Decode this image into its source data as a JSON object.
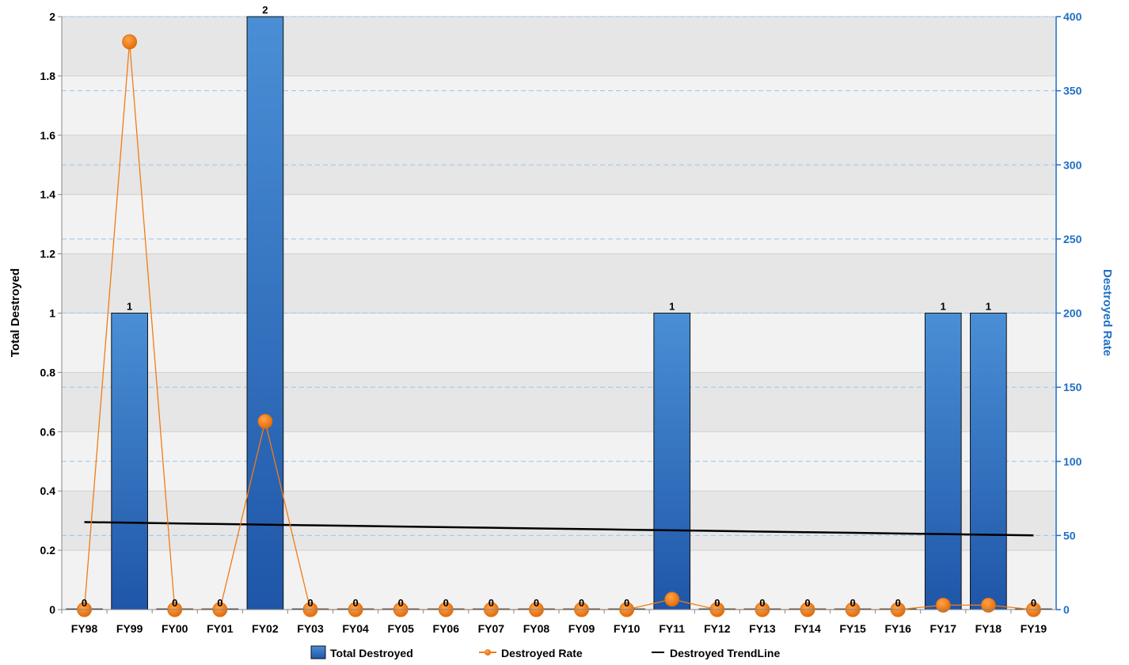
{
  "chart_data": {
    "type": "bar",
    "categories": [
      "FY98",
      "FY99",
      "FY00",
      "FY01",
      "FY02",
      "FY03",
      "FY04",
      "FY05",
      "FY06",
      "FY07",
      "FY08",
      "FY09",
      "FY10",
      "FY11",
      "FY12",
      "FY13",
      "FY14",
      "FY15",
      "FY16",
      "FY17",
      "FY18",
      "FY19"
    ],
    "series": [
      {
        "name": "Total Destroyed",
        "type": "bar",
        "axis": "left",
        "color": "#2e6fc0",
        "values": [
          0,
          1,
          0,
          0,
          2,
          0,
          0,
          0,
          0,
          0,
          0,
          0,
          0,
          1,
          0,
          0,
          0,
          0,
          0,
          1,
          1,
          0
        ],
        "data_labels": [
          "0",
          "1",
          "0",
          "0",
          "2",
          "0",
          "0",
          "0",
          "0",
          "0",
          "0",
          "0",
          "0",
          "1",
          "0",
          "0",
          "0",
          "0",
          "0",
          "1",
          "1",
          "0"
        ]
      },
      {
        "name": "Destroyed Rate",
        "type": "line",
        "axis": "right",
        "color": "#f07c16",
        "values": [
          0,
          383,
          0,
          0,
          127,
          0,
          0,
          0,
          0,
          0,
          0,
          0,
          0,
          7,
          0,
          0,
          0,
          0,
          0,
          3,
          3,
          0
        ]
      },
      {
        "name": "Destroyed TrendLine",
        "type": "line",
        "axis": "left",
        "color": "#000000",
        "values": [
          0.295,
          0.2929,
          0.2908,
          0.2886,
          0.2865,
          0.2844,
          0.2823,
          0.2801,
          0.278,
          0.2759,
          0.2738,
          0.2716,
          0.2695,
          0.2674,
          0.2653,
          0.2631,
          0.261,
          0.2589,
          0.2568,
          0.2546,
          0.2525,
          0.2504
        ]
      }
    ],
    "ylabel": "Total Destroyed",
    "y2label": "Destroyed Rate",
    "ylim": [
      0,
      2
    ],
    "y2lim": [
      0,
      400
    ],
    "yticks": [
      "0",
      "0.2",
      "0.4",
      "0.6",
      "0.8",
      "1",
      "1.2",
      "1.4",
      "1.6",
      "1.8",
      "2"
    ],
    "y2ticks": [
      "0",
      "50",
      "100",
      "150",
      "200",
      "250",
      "300",
      "350",
      "400"
    ],
    "grid": true,
    "legend_position": "bottom",
    "colors": {
      "right_axis": "#1f6fc5",
      "plot_band_light": "#f2f2f2",
      "plot_band_dark": "#e6e6e6"
    }
  }
}
